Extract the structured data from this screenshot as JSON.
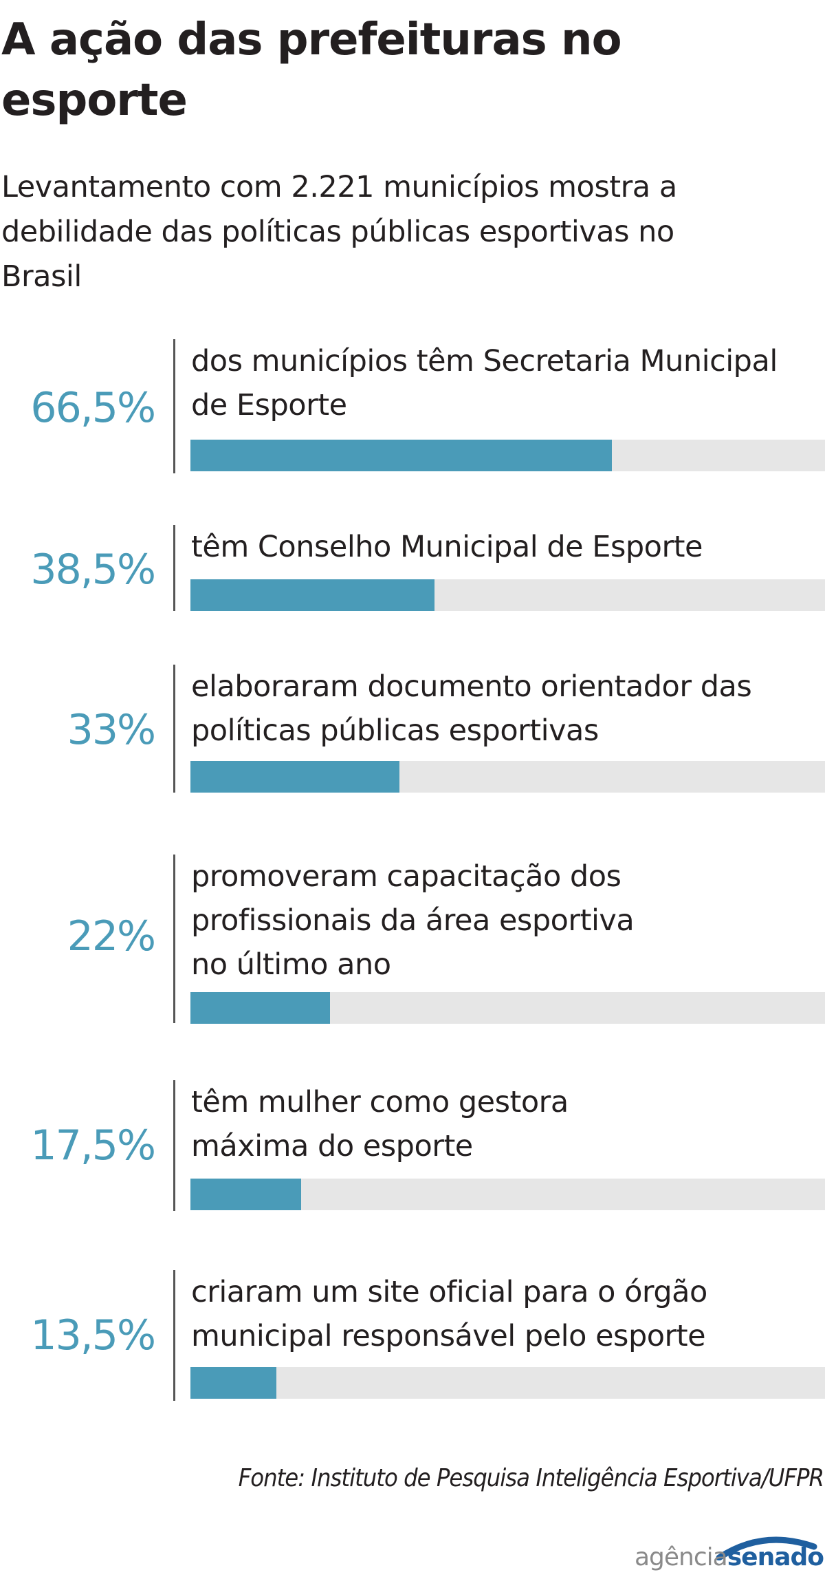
{
  "title": "A ação das prefeituras no esporte",
  "subtitle": "Levantamento com 2.221 municípios mostra a debilidade das políticas públicas esportivas no Brasil",
  "chart_data": {
    "type": "bar",
    "orientation": "horizontal",
    "xlim": [
      0,
      100
    ],
    "grid": false,
    "colors": {
      "bar": "#4a9bb8",
      "track": "#e6e6e6",
      "value_text": "#4a9bb8"
    },
    "items": [
      {
        "value": 66.5,
        "value_label": "66,5%",
        "label": "dos municípios têm Secretaria Municipal de Esporte"
      },
      {
        "value": 38.5,
        "value_label": "38,5%",
        "label": "têm Conselho Municipal de Esporte"
      },
      {
        "value": 33,
        "value_label": "33%",
        "label": "elaboraram documento orientador das políticas públicas esportivas"
      },
      {
        "value": 22,
        "value_label": "22%",
        "label": "promoveram capacitação dos profissionais da área esportiva no último ano"
      },
      {
        "value": 17.5,
        "value_label": "17,5%",
        "label": "têm mulher como gestora máxima do esporte"
      },
      {
        "value": 13.5,
        "value_label": "13,5%",
        "label": "criaram um site oficial para o órgão municipal responsável pelo esporte"
      }
    ]
  },
  "source": "Fonte: Instituto de Pesquisa Inteligência Esportiva/UFPR",
  "logo": {
    "part1": "agência",
    "part2": "senado",
    "colors": {
      "part1": "#8a8a8a",
      "part2": "#1f5f9f"
    }
  }
}
